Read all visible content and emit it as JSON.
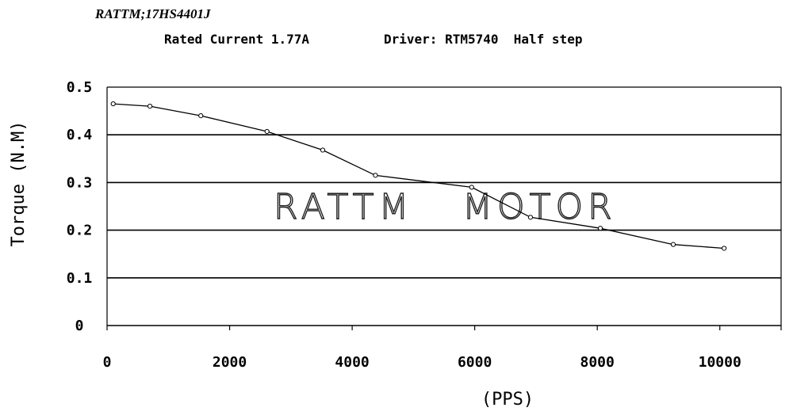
{
  "header": {
    "model": "RATTM;17HS4401J",
    "rated_current": "Rated Current 1.77A",
    "driver": "Driver: RTM5740  Half step"
  },
  "watermark": {
    "left": "RATTM",
    "right": "MOTOR"
  },
  "chart_data": {
    "type": "line",
    "title": "RATTM;17HS4401J",
    "xlabel": "(PPS)",
    "ylabel": "Torque (N.M)",
    "xlim": [
      0,
      11000
    ],
    "ylim": [
      0,
      0.5
    ],
    "x_ticks": [
      0,
      2000,
      4000,
      6000,
      8000,
      10000
    ],
    "x_tick_labels": [
      "0",
      "2000",
      "4000",
      "6000",
      "8000",
      "10000"
    ],
    "y_ticks": [
      0,
      0.1,
      0.2,
      0.3,
      0.4,
      0.5
    ],
    "y_tick_labels": [
      "0",
      "0.1",
      "0.2",
      "0.3",
      "0.4",
      "0.5"
    ],
    "grid": "horizontal",
    "series": [
      {
        "x": [
          100,
          700,
          1530,
          2610,
          3520,
          4380,
          5950,
          6910,
          8050,
          9240,
          10070
        ],
        "values": [
          0.465,
          0.46,
          0.44,
          0.407,
          0.368,
          0.315,
          0.29,
          0.227,
          0.204,
          0.17,
          0.162
        ]
      }
    ]
  }
}
